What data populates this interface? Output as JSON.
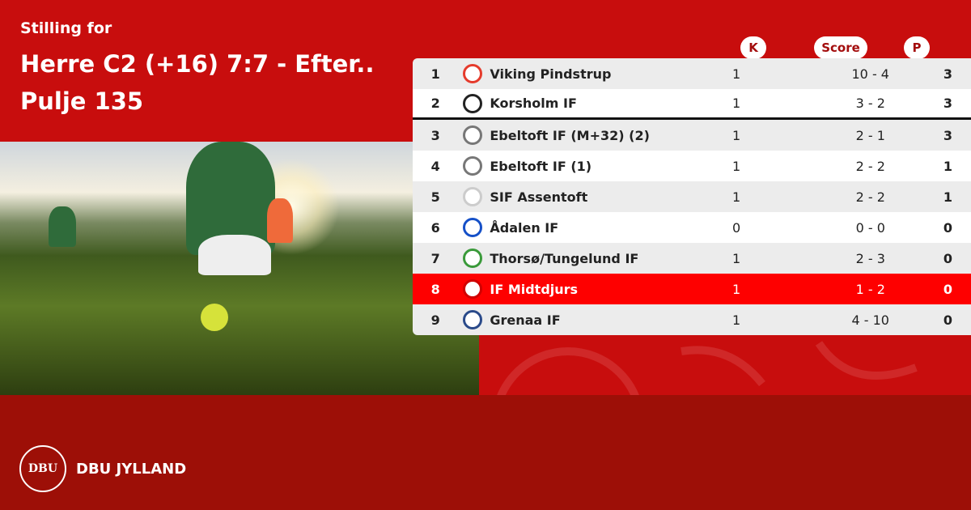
{
  "header": {
    "subtitle": "Stilling for",
    "title_line1": "Herre C2 (+16) 7:7 - Efter..",
    "title_line2": "Pulje 135"
  },
  "columns": {
    "k": "K",
    "score": "Score",
    "p": "P"
  },
  "rows": [
    {
      "pos": "1",
      "team": "Viking Pindstrup",
      "k": "1",
      "score": "10 - 4",
      "p": "3",
      "logo": "#e53b2c"
    },
    {
      "pos": "2",
      "team": "Korsholm IF",
      "k": "1",
      "score": "3 - 2",
      "p": "3",
      "logo": "#222222"
    },
    {
      "pos": "3",
      "team": "Ebeltoft IF (M+32) (2)",
      "k": "1",
      "score": "2 - 1",
      "p": "3",
      "logo": "#777777"
    },
    {
      "pos": "4",
      "team": "Ebeltoft IF (1)",
      "k": "1",
      "score": "2 - 2",
      "p": "1",
      "logo": "#777777"
    },
    {
      "pos": "5",
      "team": "SIF Assentoft",
      "k": "1",
      "score": "2 - 2",
      "p": "1",
      "logo": "#cccccc"
    },
    {
      "pos": "6",
      "team": "Ådalen IF",
      "k": "0",
      "score": "0 - 0",
      "p": "0",
      "logo": "#1550c8"
    },
    {
      "pos": "7",
      "team": "Thorsø/Tungelund IF",
      "k": "1",
      "score": "2 - 3",
      "p": "0",
      "logo": "#3a9a3a"
    },
    {
      "pos": "8",
      "team": "IF Midtdjurs",
      "k": "1",
      "score": "1 - 2",
      "p": "0",
      "logo": "#d00000"
    },
    {
      "pos": "9",
      "team": "Grenaa IF",
      "k": "1",
      "score": "4 - 10",
      "p": "0",
      "logo": "#2a4a8a"
    }
  ],
  "footer": {
    "brand": "DBU JYLLAND",
    "seal_text": "DBU"
  },
  "colors": {
    "top": "#c80d0d",
    "bottom": "#9d0f07",
    "highlight": "#fe0000"
  }
}
